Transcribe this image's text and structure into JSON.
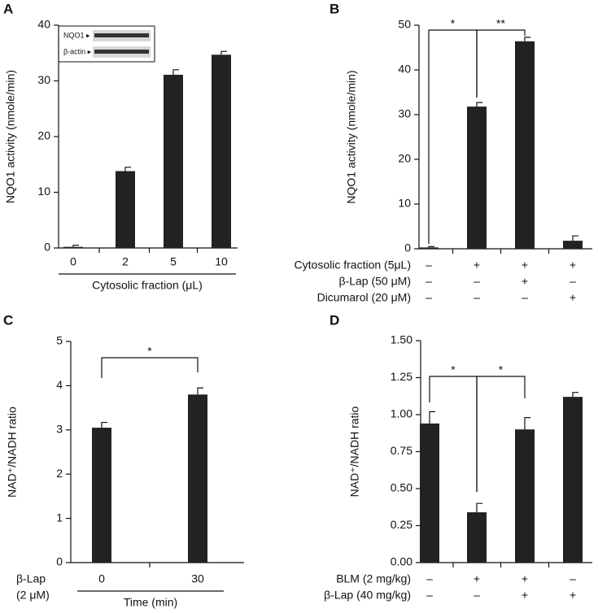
{
  "chart_data": [
    {
      "type": "bar",
      "panel": "A",
      "ylabel": "NQO1 activity (nmole/min)",
      "categories": [
        "0",
        "2",
        "5",
        "10"
      ],
      "xlabel": "Cytosolic fraction (μL)",
      "values": [
        0.2,
        13.8,
        31.1,
        34.7
      ],
      "errors": [
        0.3,
        0.7,
        0.9,
        0.6
      ],
      "color": "#222222",
      "ylim": [
        0,
        40
      ],
      "yticks": [
        0,
        10,
        20,
        30,
        40
      ],
      "inset_labels": [
        "NQO1 ▸",
        "β-actin ▸"
      ]
    },
    {
      "type": "bar",
      "panel": "B",
      "ylabel": "NQO1 activity (nmole/min)",
      "values": [
        0.3,
        31.8,
        46.4,
        1.8
      ],
      "errors": [
        0.2,
        0.9,
        0.9,
        1.1
      ],
      "color": "#222222",
      "ylim": [
        0,
        50
      ],
      "yticks": [
        0,
        10,
        20,
        30,
        40,
        50
      ],
      "rows": [
        {
          "label": "Cytosolic fraction (5μL)",
          "marks": [
            "–",
            "+",
            "+",
            "+"
          ]
        },
        {
          "label": "β-Lap (50 μM)",
          "marks": [
            "–",
            "–",
            "+",
            "–"
          ]
        },
        {
          "label": "Dicumarol (20 μM)",
          "marks": [
            "–",
            "–",
            "–",
            "+"
          ]
        }
      ],
      "annotations": [
        "*",
        "**"
      ]
    },
    {
      "type": "bar",
      "panel": "C",
      "ylabel": "NAD⁺/NADH ratio",
      "category_title": [
        "β-Lap",
        "(2 μM)"
      ],
      "categories": [
        "0",
        "30"
      ],
      "xlabel": "Time (min)",
      "values": [
        3.05,
        3.8
      ],
      "errors": [
        0.12,
        0.15
      ],
      "color": "#222222",
      "ylim": [
        0,
        5
      ],
      "yticks": [
        0,
        1,
        2,
        3,
        4,
        5
      ],
      "annotations": [
        "*"
      ]
    },
    {
      "type": "bar",
      "panel": "D",
      "ylabel": "NAD⁺/NADH ratio",
      "values": [
        0.94,
        0.34,
        0.9,
        1.12
      ],
      "errors": [
        0.08,
        0.06,
        0.08,
        0.03
      ],
      "color": "#222222",
      "ylim": [
        0,
        1.5
      ],
      "yticks": [
        {
          "value": 0,
          "label": "0.00"
        },
        0.25,
        {
          "value": 0.5,
          "label": "0.50"
        },
        0.75,
        {
          "value": 1,
          "label": "1.00"
        },
        1.25,
        {
          "value": 1.5,
          "label": "1.50"
        }
      ],
      "rows": [
        {
          "label": "BLM (2 mg/kg)",
          "marks": [
            "–",
            "+",
            "+",
            "–"
          ]
        },
        {
          "label": "β-Lap (40 mg/kg)",
          "marks": [
            "–",
            "–",
            "+",
            "+"
          ]
        }
      ],
      "annotations": [
        "*",
        "*"
      ]
    }
  ]
}
